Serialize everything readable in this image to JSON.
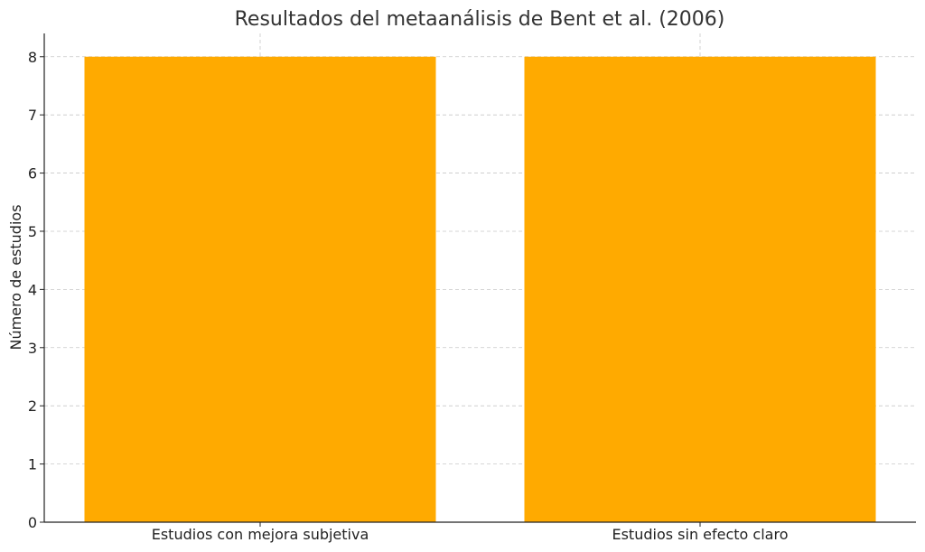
{
  "chart_data": {
    "type": "bar",
    "title": "Resultados del metaanálisis de Bent et al. (2006)",
    "xlabel": "",
    "ylabel": "Número de estudios",
    "categories": [
      "Estudios con mejora subjetiva",
      "Estudios sin efecto claro"
    ],
    "values": [
      8,
      8
    ],
    "ylim": [
      0,
      8.4
    ],
    "yticks": [
      0,
      1,
      2,
      3,
      4,
      5,
      6,
      7,
      8
    ],
    "grid": true,
    "bar_color": "#FFAA00"
  }
}
